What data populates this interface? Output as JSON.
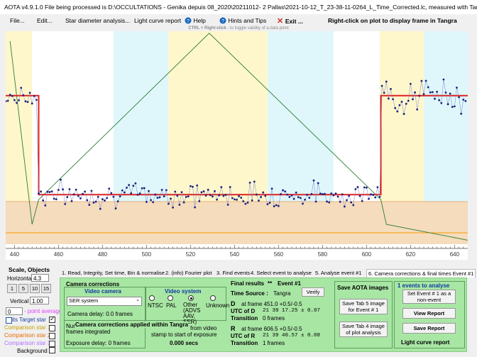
{
  "window": {
    "title": "AOTA v4.9.1.0   File being processed is D:\\OCCULTATIONS - Genika depuis 08_2020\\20211012- 2 Pallas\\2021-10-12_T_23-38-11-0264_L_Time_Corrected.lc, measured with Tangra"
  },
  "menu": {
    "file": "File...",
    "edit": "Edit...",
    "star_diameter": "Star diameter analysis...",
    "light_curve_report": "Light curve report",
    "help": "Help",
    "hints": "Hints and Tips",
    "exit": "Exit ...",
    "right_click_hint": "Right-click on plot to display frame in Tangra"
  },
  "plot": {
    "ctrl_hint": "CTRL + Right-click",
    "ctrl_hint_rest": "- to toggle validity of a data point",
    "xlim": [
      436,
      646
    ],
    "ylim": [
      -0.5,
      1.65
    ],
    "x_ticks": [
      440,
      460,
      480,
      500,
      520,
      540,
      560,
      580,
      600,
      620,
      640
    ],
    "bands": [
      {
        "type": "yellow",
        "x0": 436,
        "x1": 448
      },
      {
        "type": "cyan",
        "x0": 485,
        "x1": 510
      },
      {
        "type": "yellow",
        "x0": 510,
        "x1": 555
      },
      {
        "type": "cyan",
        "x0": 555,
        "x1": 585
      },
      {
        "type": "yellow",
        "x0": 606,
        "x1": 626
      },
      {
        "type": "cyan",
        "x0": 626,
        "x1": 646
      }
    ],
    "base_level": 1.0,
    "event_level": 0.0,
    "d_frame": 451.0,
    "r_frame": 606.5,
    "triangle": {
      "left_bottom": 451,
      "peak_x": 528.5,
      "peak_y": 1.63,
      "right_bottom": 606.5
    },
    "colors": {
      "data": "#1a237e",
      "model": "#e02020",
      "triangle": "#2e7d32",
      "bottom_band": "#f5dcbc",
      "orange_line": "#ff9800"
    }
  },
  "left": {
    "scale_header": "Scale,  Objects",
    "horizontal_label": "Horizontal",
    "horizontal_value": "4.3",
    "scale_buttons": [
      "1",
      "5",
      "10",
      "15"
    ],
    "vertical_label": "Vertical",
    "vertical_value": "1.00",
    "point_avg_value": "0",
    "point_avg_label": "- point average",
    "target_label": "its  Target star",
    "comp1": "Comparison star 1",
    "comp2": "Comparison star 2",
    "comp3": "Comparison star 3",
    "background": "Background"
  },
  "tabs": [
    "1. Read, Integrity, Set time, Bin & normalise",
    "2. (info) Fourier plot",
    "3. Find events",
    "4. Select event to analyse",
    "5. Analyse event #1",
    "6. Camera corrections & final times  Event #1"
  ],
  "camera": {
    "section_title": "Camera corrections",
    "video_camera_title": "Video camera",
    "camera_select": "SER system",
    "camera_delay": "Camera delay: 0.0 frames",
    "video_system_title": "Video system",
    "options": [
      "NTSC",
      "PAL",
      "Other (ADVS AAV, SER)",
      "Unknown"
    ],
    "frames_label_1": "Num",
    "frames_label_2": "frames integrated",
    "tangra_note": "Camera corrections applied within Tangra",
    "from_video": "from video",
    "stamp_text": "stamp to start of exposure",
    "exposure_delay": "Exposure delay: 0 frames",
    "secs": "0.000 secs"
  },
  "final": {
    "title": "Final results",
    "stars": "**",
    "event": "Event #1",
    "time_source_label": "Time Source :",
    "time_source": "Tangra",
    "verify": "Verify",
    "d_label": "D",
    "d_frame": "at frame 451.0  +0.5/-0.5",
    "utc_d_label": "UTC of D",
    "utc_d": "21 39 17.25  ± 0.07",
    "transition_label": "Transition",
    "d_transition": "0 frames",
    "r_label": "R",
    "r_frame": "at frame 606.5  +0.5/-0.5",
    "utc_r_label": "UTC of R",
    "utc_r": "21 39 40.57  ± 0.08",
    "r_transition": "1 frames"
  },
  "save": {
    "title": "Save AOTA images",
    "btn1": "Save Tab 5 image for Event # 1",
    "btn2": "Save Tab 4 image of plot analysis"
  },
  "events": {
    "title": "1  events to analyse",
    "set_event": "Set Event # 1 as a non-event",
    "view_report": "View Report",
    "save_report": "Save Report",
    "lc_report": "Light curve report"
  }
}
